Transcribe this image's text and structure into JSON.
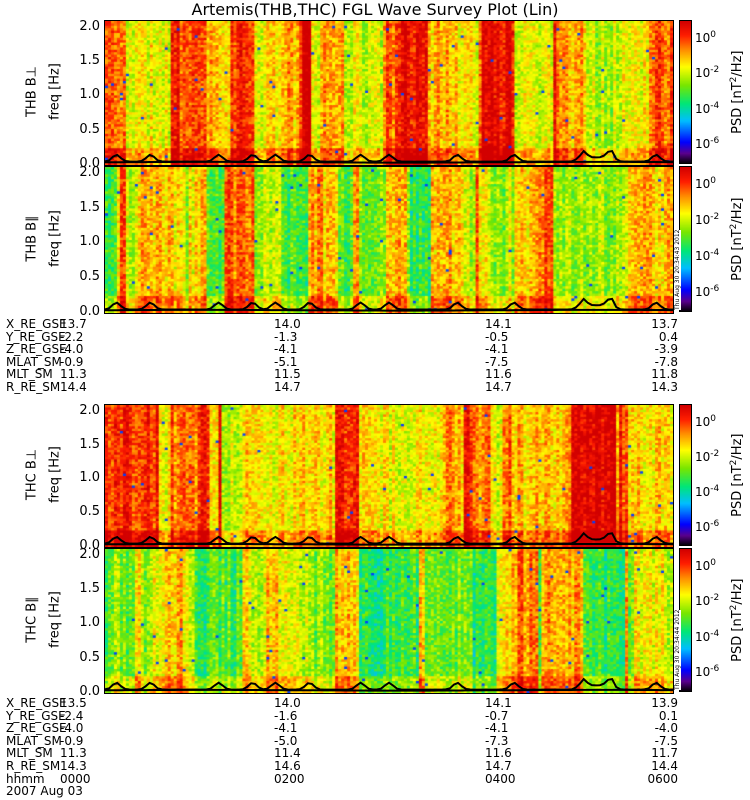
{
  "chart_data": {
    "type": "heatmap",
    "title": "Artemis(THB,THC) FGL Wave Survey Plot (Lin)",
    "ylabel": "freq [Hz]",
    "yticks": [
      "0.0",
      "0.5",
      "1.0",
      "1.5",
      "2.0"
    ],
    "ylim": [
      0.0,
      2.1
    ],
    "x_time_range": [
      "0000",
      "0600"
    ],
    "colorbar": {
      "label": "PSD [nT²/Hz]",
      "label_prefix": "PSD [nT",
      "label_exp": "2",
      "label_suffix": "/Hz]",
      "scale": "log",
      "range": [
        1e-07,
        10
      ],
      "ticks": [
        {
          "base": "10",
          "exp": "0"
        },
        {
          "base": "10",
          "exp": "-2"
        },
        {
          "base": "10",
          "exp": "-4"
        },
        {
          "base": "10",
          "exp": "-6"
        }
      ]
    },
    "panels": [
      {
        "label": "THB B⊥",
        "seed": 11,
        "stamp": ""
      },
      {
        "label": "THB B∥",
        "seed": 23,
        "stamp": "Thu Aug 30 20:34:43 2012"
      },
      {
        "label": "THC B⊥",
        "seed": 37,
        "stamp": ""
      },
      {
        "label": "THC B∥",
        "seed": 51,
        "stamp": "Thu Aug 30 20:34:44 2012"
      }
    ],
    "ephemeris_blocks": [
      {
        "rows": [
          {
            "name": "X_RE_GSE",
            "values": [
              "13.7",
              "14.0",
              "14.1",
              "13.7"
            ]
          },
          {
            "name": "Y_RE_GSE",
            "values": [
              "-2.2",
              "-1.3",
              "-0.5",
              "0.4"
            ]
          },
          {
            "name": "Z_RE_GSE",
            "values": [
              "-4.0",
              "-4.1",
              "-4.1",
              "-3.9"
            ]
          },
          {
            "name": "MLAT_SM",
            "values": [
              "-0.9",
              "-5.1",
              "-7.5",
              "-7.8"
            ]
          },
          {
            "name": "MLT_SM",
            "values": [
              "11.3",
              "11.5",
              "11.6",
              "11.8"
            ]
          },
          {
            "name": "R_RE_SM",
            "values": [
              "14.4",
              "14.7",
              "14.7",
              "14.3"
            ]
          }
        ]
      },
      {
        "rows": [
          {
            "name": "X_RE_GSE",
            "values": [
              "13.5",
              "14.0",
              "14.1",
              "13.9"
            ]
          },
          {
            "name": "Y_RE_GSE",
            "values": [
              "-2.4",
              "-1.6",
              "-0.7",
              "0.1"
            ]
          },
          {
            "name": "Z_RE_GSE",
            "values": [
              "-4.0",
              "-4.1",
              "-4.1",
              "-4.0"
            ]
          },
          {
            "name": "MLAT_SM",
            "values": [
              "-0.9",
              "-5.0",
              "-7.3",
              "-7.5"
            ]
          },
          {
            "name": "MLT_SM",
            "values": [
              "11.3",
              "11.4",
              "11.6",
              "11.7"
            ]
          },
          {
            "name": "R_RE_SM",
            "values": [
              "14.3",
              "14.6",
              "14.7",
              "14.4"
            ]
          },
          {
            "name": "hhmm",
            "values": [
              "0000",
              "0200",
              "0400",
              "0600"
            ]
          }
        ]
      }
    ],
    "date": "2007 Aug 03"
  }
}
